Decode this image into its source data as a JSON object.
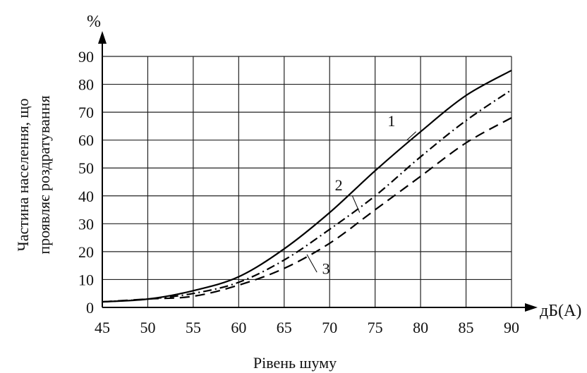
{
  "chart_data": {
    "type": "line",
    "title": "",
    "xlabel": "Рівень шуму",
    "x_unit": "дБ(А)",
    "y_unit": "%",
    "ylabel_lines": [
      "Частина населення, що",
      "проявляє роздратування"
    ],
    "xlim": [
      45,
      90
    ],
    "ylim": [
      0,
      90
    ],
    "x_ticks": [
      45,
      50,
      55,
      60,
      65,
      70,
      75,
      80,
      85,
      90
    ],
    "y_ticks": [
      0,
      10,
      20,
      30,
      40,
      50,
      60,
      70,
      80,
      90
    ],
    "grid": true,
    "series": [
      {
        "name": "1",
        "style": "solid",
        "x": [
          45,
          50,
          55,
          60,
          65,
          70,
          75,
          80,
          85,
          90
        ],
        "y": [
          2,
          3,
          6,
          11,
          21,
          34,
          49,
          63,
          76,
          85
        ]
      },
      {
        "name": "2",
        "style": "dash-dot",
        "x": [
          45,
          50,
          55,
          60,
          65,
          70,
          75,
          80,
          85,
          90
        ],
        "y": [
          2,
          3,
          5,
          9,
          17,
          28,
          40,
          54,
          67,
          78
        ]
      },
      {
        "name": "3",
        "style": "dashed",
        "x": [
          45,
          50,
          55,
          60,
          65,
          70,
          75,
          80,
          85,
          90
        ],
        "y": [
          2,
          3,
          4,
          8,
          14,
          23,
          35,
          47,
          59,
          68
        ]
      }
    ]
  }
}
